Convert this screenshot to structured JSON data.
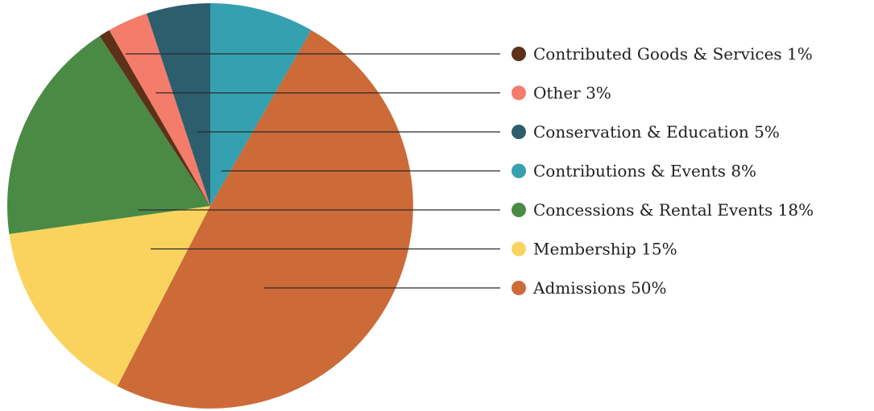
{
  "chart_data": {
    "type": "pie",
    "title": "",
    "start": "top",
    "direction": "clockwise",
    "slices": [
      {
        "label": "Contributions & Events",
        "percent_label": "8%",
        "value": 8.5,
        "color": "#35a0b0"
      },
      {
        "label": "Admissions",
        "percent_label": "50%",
        "value": 50.5,
        "color": "#cc6a38"
      },
      {
        "label": "Membership",
        "percent_label": "15%",
        "value": 15.6,
        "color": "#fad35f"
      },
      {
        "label": "Concessions & Rental Events",
        "percent_label": "18%",
        "value": 18.5,
        "color": "#4a8a45"
      },
      {
        "label": "Contributed Goods & Services",
        "percent_label": "1%",
        "value": 0.9,
        "color": "#5c3118"
      },
      {
        "label": "Other",
        "percent_label": "3%",
        "value": 3.3,
        "color": "#f47c6a"
      },
      {
        "label": "Conservation & Education",
        "percent_label": "5%",
        "value": 5.2,
        "color": "#2d5e6e"
      }
    ],
    "legend": {
      "placement": "right",
      "order": [
        "Contributed Goods & Services",
        "Other",
        "Conservation & Education",
        "Contributions & Events",
        "Concessions & Rental Events",
        "Membership",
        "Admissions"
      ]
    }
  }
}
